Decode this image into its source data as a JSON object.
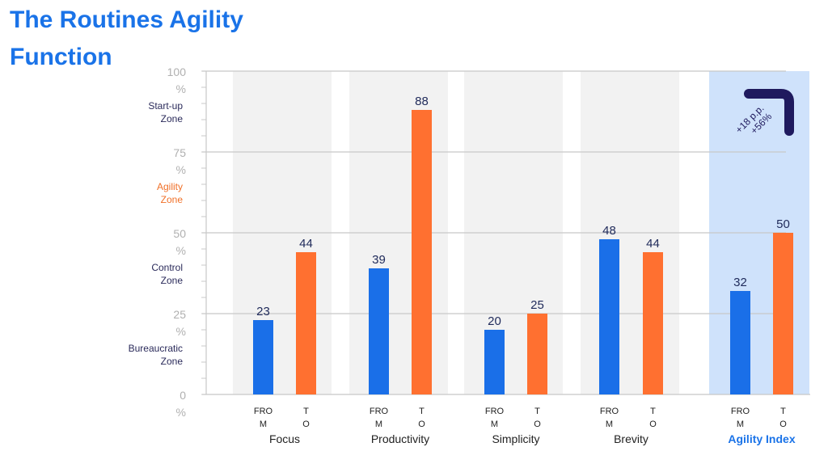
{
  "title": {
    "line1": "The Routines Agility",
    "line2": "Function"
  },
  "chart_data": {
    "type": "bar",
    "title": "The Routines Agility Function",
    "ylim": [
      0,
      100
    ],
    "yticks": [
      {
        "value": 0,
        "label": "0",
        "unit": "%"
      },
      {
        "value": 25,
        "label": "25",
        "unit": "%"
      },
      {
        "value": 50,
        "label": "50",
        "unit": "%"
      },
      {
        "value": 75,
        "label": "75",
        "unit": "%"
      },
      {
        "value": 100,
        "label": "100",
        "unit": "%"
      }
    ],
    "zones": [
      {
        "line1": "Start-up",
        "line2": "Zone",
        "color": "#2a2a5a"
      },
      {
        "line1": "Agility",
        "line2": "Zone",
        "color": "#f07028"
      },
      {
        "line1": "Control",
        "line2": "Zone",
        "color": "#2a2a5a"
      },
      {
        "line1": "Bureaucratic",
        "line2": "Zone",
        "color": "#2a2a5a"
      }
    ],
    "bar_labels": {
      "from": {
        "line1": "FRO",
        "line2": "M"
      },
      "to": {
        "line1": "T",
        "line2": "O"
      }
    },
    "categories": [
      "Focus",
      "Productivity",
      "Simplicity",
      "Brevity",
      "Agility Index"
    ],
    "highlight_category": "Agility Index",
    "series": [
      {
        "key": "from",
        "color": "#1a6fe8",
        "values": [
          23,
          39,
          20,
          48,
          32
        ]
      },
      {
        "key": "to",
        "color": "#ff7030",
        "values": [
          44,
          88,
          25,
          44,
          50
        ]
      }
    ],
    "annotation": {
      "line1": "+18 p.p.",
      "line2": "+56%"
    },
    "grid": true,
    "colors": {
      "panel": "#f2f2f2",
      "highlight_panel": "#cfe2fb",
      "grid": "#c8c8c8",
      "tick_text": "#b0b0b0",
      "value_text": "#1f2a5a",
      "category_text": "#222222",
      "highlight_text": "#1a73e8",
      "arrow": "#1f1a5e"
    }
  }
}
